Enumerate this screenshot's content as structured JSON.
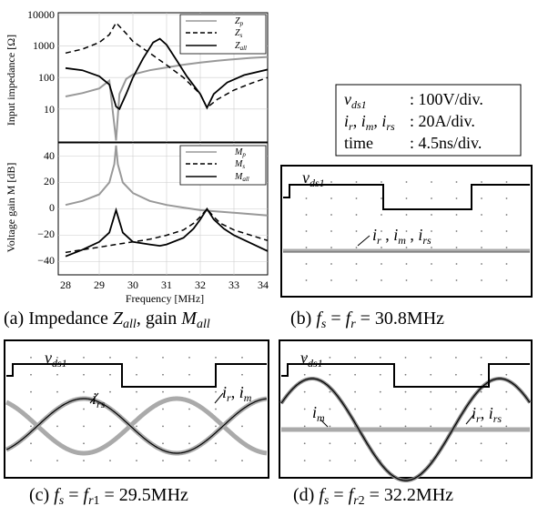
{
  "panel_a": {
    "impedance": {
      "ylabel": "Input impedance [Ω]",
      "yticks": [
        "10000",
        "1000",
        "100",
        "10"
      ],
      "legend": [
        {
          "base": "Z",
          "sub": "p",
          "style": "gray"
        },
        {
          "base": "Z",
          "sub": "s",
          "style": "dashed"
        },
        {
          "base": "Z",
          "sub": "all",
          "style": "solid"
        }
      ]
    },
    "gain": {
      "ylabel": "Voltage gain M [dB]",
      "yticks": [
        "40",
        "20",
        "0",
        "−20",
        "−40"
      ],
      "legend": [
        {
          "base": "M",
          "sub": "p",
          "style": "gray"
        },
        {
          "base": "M",
          "sub": "s",
          "style": "dashed"
        },
        {
          "base": "M",
          "sub": "all",
          "style": "solid"
        }
      ]
    },
    "xticks": [
      "28",
      "29",
      "30",
      "31",
      "32",
      "33",
      "34"
    ],
    "xlabel": "Frequency [MHz]",
    "caption_prefix": "(a) Impedance ",
    "caption_z": "Z",
    "caption_z_sub": "all",
    "caption_mid": ", gain ",
    "caption_m": "M",
    "caption_m_sub": "all"
  },
  "scale_box": {
    "row1_label": "v",
    "row1_sub": "ds1",
    "row1_value": ": 100V/div.",
    "row2_value": ": 20A/div.",
    "row3_label": "time",
    "row3_value": ": 4.5ns/div."
  },
  "panel_b": {
    "caption": "(b) f s = f r = 30.8MHz",
    "v_label": "v",
    "v_sub": "ds1",
    "i_label": "i r , i m , i rs"
  },
  "panel_c": {
    "caption": "(c) f s = f r1 = 29.5MHz"
  },
  "panel_d": {
    "caption": "(d) f s = f r2 = 32.2MHz"
  },
  "chart_data": [
    {
      "type": "line",
      "xlabel": "Frequency [MHz]",
      "ylabel": "Input impedance [Ω]",
      "xlim": [
        28,
        34
      ],
      "ylim": [
        1,
        10000
      ],
      "yscale": "log",
      "series": [
        {
          "name": "Zp",
          "x": [
            28,
            28.5,
            29,
            29.3,
            29.5,
            29.6,
            29.8,
            30,
            30.5,
            31,
            31.5,
            32,
            32.5,
            33,
            33.5,
            34
          ],
          "values": [
            25,
            32,
            45,
            80,
            1,
            30,
            90,
            125,
            170,
            210,
            255,
            300,
            340,
            380,
            420,
            450
          ]
        },
        {
          "name": "Zs",
          "x": [
            28,
            28.5,
            29,
            29.3,
            29.5,
            29.8,
            30,
            30.5,
            31,
            31.5,
            32,
            32.2,
            32.5,
            33,
            33.5,
            34
          ],
          "values": [
            600,
            800,
            1300,
            2300,
            5500,
            2500,
            1400,
            600,
            250,
            100,
            30,
            11,
            20,
            40,
            65,
            100
          ]
        },
        {
          "name": "Zall",
          "x": [
            28,
            28.5,
            29,
            29.3,
            29.5,
            29.6,
            29.8,
            30,
            30.3,
            30.6,
            30.8,
            31,
            31.3,
            31.6,
            32,
            32.2,
            32.4,
            32.8,
            33.3,
            34
          ],
          "values": [
            200,
            170,
            110,
            60,
            12,
            10,
            30,
            100,
            400,
            1300,
            1700,
            1100,
            350,
            110,
            30,
            11,
            30,
            70,
            120,
            180
          ]
        }
      ]
    },
    {
      "type": "line",
      "xlabel": "Frequency [MHz]",
      "ylabel": "Voltage gain M [dB]",
      "xlim": [
        28,
        34
      ],
      "ylim": [
        -50,
        50
      ],
      "series": [
        {
          "name": "Mp",
          "x": [
            28,
            28.5,
            29,
            29.3,
            29.45,
            29.5,
            29.55,
            29.7,
            30,
            30.5,
            31,
            31.5,
            32,
            32.5,
            33,
            33.5,
            34
          ],
          "values": [
            3,
            6,
            11,
            20,
            34,
            48,
            34,
            20,
            12,
            6,
            3,
            1,
            -1,
            -2,
            -3,
            -4,
            -5
          ]
        },
        {
          "name": "Ms",
          "x": [
            28,
            28.5,
            29,
            29.5,
            30,
            30.5,
            31,
            31.5,
            31.8,
            32,
            32.2,
            32.4,
            32.6,
            33,
            33.5,
            34
          ],
          "values": [
            -33,
            -31,
            -29,
            -27,
            -25,
            -23,
            -20,
            -16,
            -11,
            -6,
            0,
            -6,
            -11,
            -16,
            -20,
            -24
          ]
        },
        {
          "name": "Mall",
          "x": [
            28,
            28.5,
            29,
            29.3,
            29.5,
            29.7,
            30,
            30.5,
            30.8,
            31,
            31.5,
            31.8,
            32,
            32.2,
            32.4,
            32.7,
            33,
            33.5,
            34
          ],
          "values": [
            -36,
            -31,
            -25,
            -18,
            -1,
            -18,
            -25,
            -27,
            -28,
            -27,
            -22,
            -15,
            -8,
            0,
            -8,
            -15,
            -20,
            -26,
            -32
          ]
        }
      ]
    }
  ]
}
